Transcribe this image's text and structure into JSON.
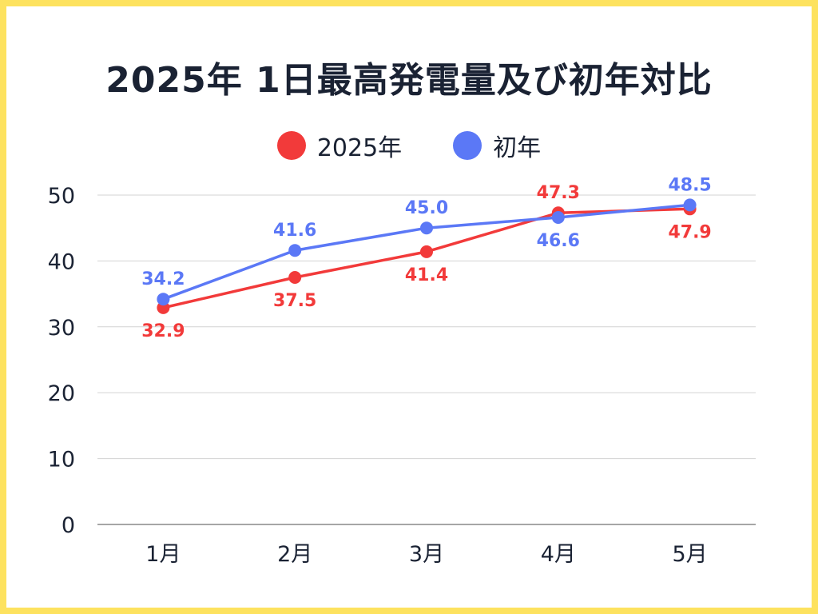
{
  "chart_data": {
    "type": "line",
    "title": "2025年 1日最高発電量及び初年対比",
    "xlabel": "",
    "ylabel": "",
    "categories": [
      "1月",
      "2月",
      "3月",
      "4月",
      "5月"
    ],
    "ylim": [
      0,
      50
    ],
    "yticks": [
      0,
      10,
      20,
      30,
      40,
      50
    ],
    "grid": true,
    "legend_position": "top-center",
    "series": [
      {
        "name": "2025年",
        "color": "#f23a3a",
        "values": [
          32.9,
          37.5,
          41.4,
          47.3,
          47.9
        ],
        "labels": [
          "32.9",
          "37.5",
          "41.4",
          "47.3",
          "47.9"
        ]
      },
      {
        "name": "初年",
        "color": "#5b78f6",
        "values": [
          34.2,
          41.6,
          45.0,
          46.6,
          48.5
        ],
        "labels": [
          "34.2",
          "41.6",
          "45.0",
          "46.6",
          "48.5"
        ]
      }
    ]
  }
}
